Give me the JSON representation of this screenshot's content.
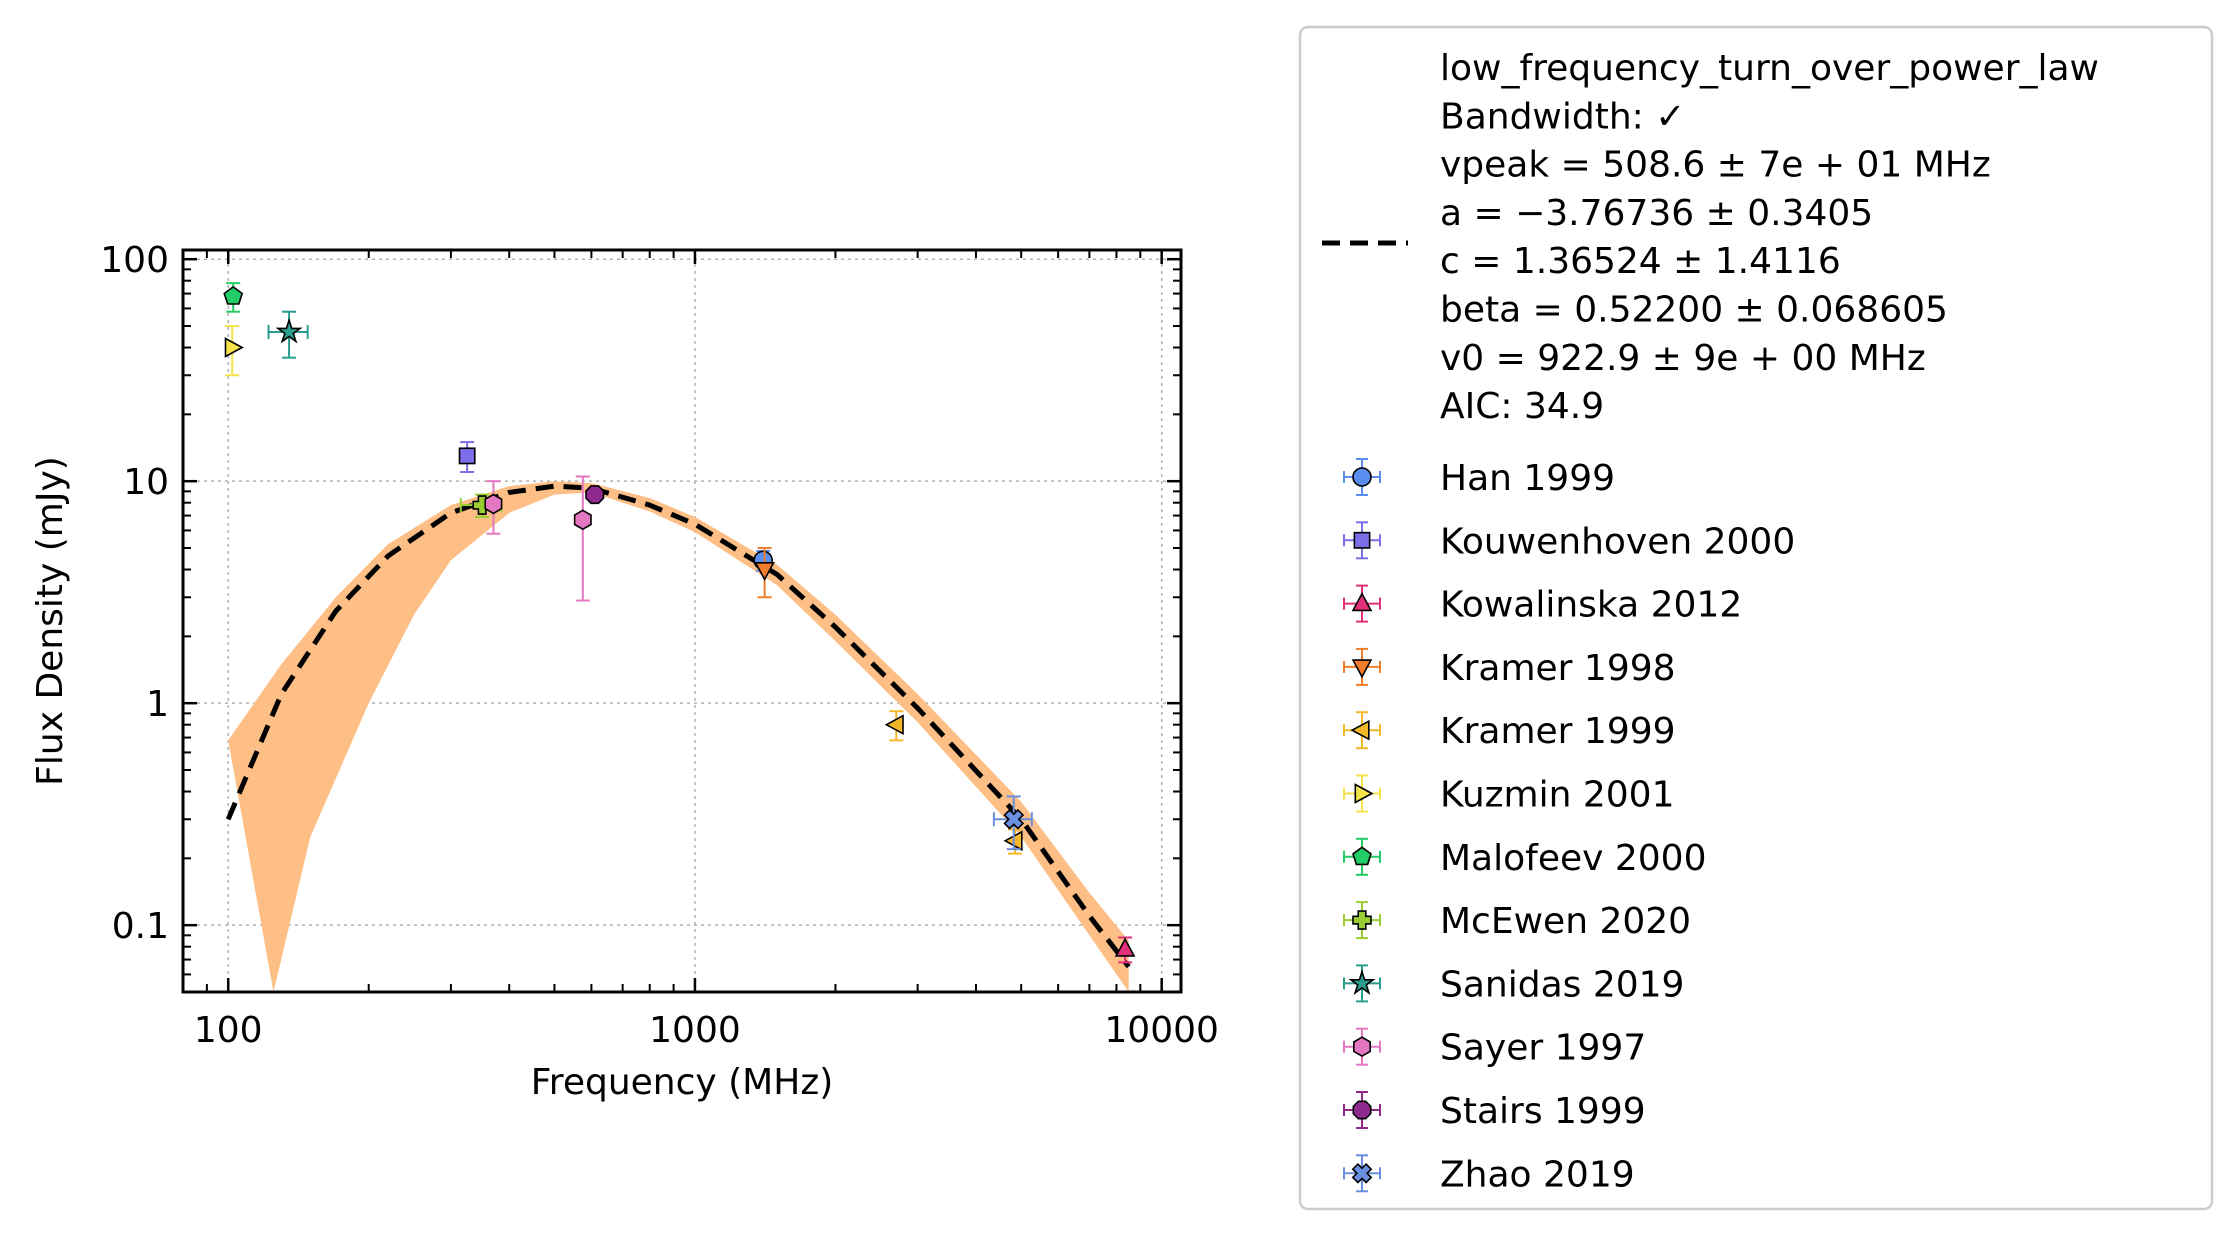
{
  "chart_data": {
    "type": "scatter",
    "xlabel": "Frequency (MHz)",
    "ylabel": "Flux Density (mJy)",
    "xscale": "log",
    "yscale": "log",
    "xlim": [
      80,
      11000
    ],
    "ylim": [
      0.05,
      110
    ],
    "grid": true,
    "legend_placement": "outside right",
    "x_ticks": [
      {
        "value": 100,
        "label": "100"
      },
      {
        "value": 1000,
        "label": "1000"
      },
      {
        "value": 10000,
        "label": "10000"
      }
    ],
    "y_ticks": [
      {
        "value": 0.1,
        "label": "0.1"
      },
      {
        "value": 1,
        "label": "1"
      },
      {
        "value": 10,
        "label": "10"
      },
      {
        "value": 100,
        "label": "100"
      }
    ],
    "fit": {
      "model": "low_frequency_turn_over_power_law",
      "legend_lines": [
        "low_frequency_turn_over_power_law",
        "Bandwidth: ✓",
        "vpeak = 508.6 ± 7e + 01 MHz",
        "a = −3.76736 ± 0.3405",
        "c = 1.36524 ± 1.4116",
        "beta = 0.52200 ± 0.068605",
        "v0 = 922.9 ± 9e + 00 MHz",
        "AIC: 34.9"
      ],
      "line_color": "#000000",
      "band_color": "#fdbf86",
      "curve": [
        [
          100,
          0.3
        ],
        [
          130,
          1.1
        ],
        [
          170,
          2.6
        ],
        [
          220,
          4.6
        ],
        [
          300,
          7.2
        ],
        [
          400,
          8.9
        ],
        [
          500,
          9.5
        ],
        [
          600,
          9.3
        ],
        [
          800,
          7.8
        ],
        [
          1000,
          6.4
        ],
        [
          1500,
          3.8
        ],
        [
          2000,
          2.2
        ],
        [
          3000,
          0.95
        ],
        [
          5000,
          0.3
        ],
        [
          7000,
          0.11
        ],
        [
          8500,
          0.065
        ]
      ],
      "band_upper": [
        [
          100,
          0.68
        ],
        [
          130,
          1.5
        ],
        [
          170,
          3.0
        ],
        [
          220,
          5.2
        ],
        [
          300,
          7.8
        ],
        [
          400,
          9.5
        ],
        [
          500,
          10.0
        ],
        [
          600,
          9.8
        ],
        [
          800,
          8.4
        ],
        [
          1000,
          6.9
        ],
        [
          1500,
          4.2
        ],
        [
          2000,
          2.5
        ],
        [
          3000,
          1.1
        ],
        [
          5000,
          0.36
        ],
        [
          7000,
          0.14
        ],
        [
          8500,
          0.085
        ]
      ],
      "band_lower": [
        [
          125,
          0.05
        ],
        [
          150,
          0.25
        ],
        [
          200,
          1.0
        ],
        [
          250,
          2.5
        ],
        [
          300,
          4.4
        ],
        [
          400,
          7.2
        ],
        [
          500,
          8.7
        ],
        [
          600,
          8.9
        ],
        [
          800,
          7.3
        ],
        [
          1000,
          5.9
        ],
        [
          1500,
          3.4
        ],
        [
          2000,
          1.9
        ],
        [
          3000,
          0.82
        ],
        [
          5000,
          0.25
        ],
        [
          7000,
          0.09
        ],
        [
          8500,
          0.05
        ]
      ]
    },
    "series": [
      {
        "name": "Han 1999",
        "marker": "circle",
        "color": "#5b8def",
        "points": [
          {
            "x": 1400,
            "y": 4.4,
            "yerr": [
              0.45,
              0.45
            ],
            "xerr": [
              0,
              0
            ]
          }
        ]
      },
      {
        "name": "Kouwenhoven 2000",
        "marker": "square",
        "color": "#7b6ee8",
        "points": [
          {
            "x": 325,
            "y": 13,
            "yerr": [
              2,
              2
            ],
            "xerr": [
              0,
              0
            ]
          }
        ]
      },
      {
        "name": "Kowalinska 2012",
        "marker": "triangle-up",
        "color": "#e0307a",
        "points": [
          {
            "x": 8350,
            "y": 0.078,
            "yerr": [
              0.01,
              0.01
            ],
            "xerr": [
              0,
              0
            ]
          }
        ]
      },
      {
        "name": "Kramer 1998",
        "marker": "triangle-down",
        "color": "#f07d2b",
        "points": [
          {
            "x": 1410,
            "y": 4.0,
            "yerr": [
              1.0,
              1.0
            ],
            "xerr": [
              0,
              0
            ]
          }
        ]
      },
      {
        "name": "Kramer 1999",
        "marker": "triangle-left",
        "color": "#f3b72a",
        "points": [
          {
            "x": 2700,
            "y": 0.8,
            "yerr": [
              0.12,
              0.12
            ],
            "xerr": [
              0,
              0
            ]
          },
          {
            "x": 4850,
            "y": 0.24,
            "yerr": [
              0.03,
              0.03
            ],
            "xerr": [
              0,
              0
            ]
          }
        ]
      },
      {
        "name": "Kuzmin 2001",
        "marker": "triangle-right",
        "color": "#f5e34a",
        "points": [
          {
            "x": 102,
            "y": 40,
            "yerr": [
              10,
              10
            ],
            "xerr": [
              0,
              0
            ]
          }
        ]
      },
      {
        "name": "Malofeev 2000",
        "marker": "pentagon",
        "color": "#22cc66",
        "points": [
          {
            "x": 102.5,
            "y": 68,
            "yerr": [
              10,
              10
            ],
            "xerr": [
              0,
              0
            ]
          }
        ]
      },
      {
        "name": "McEwen 2020",
        "marker": "plus",
        "color": "#9acd32",
        "points": [
          {
            "x": 350,
            "y": 7.8,
            "yerr": [
              0.9,
              0.9
            ],
            "xerr": [
              35,
              35
            ]
          }
        ]
      },
      {
        "name": "Sanidas 2019",
        "marker": "star",
        "color": "#2a9d8f",
        "points": [
          {
            "x": 135,
            "y": 47,
            "yerr": [
              11,
              11
            ],
            "xerr": [
              13,
              13
            ]
          }
        ]
      },
      {
        "name": "Sayer 1997",
        "marker": "hexagon",
        "color": "#e377c2",
        "points": [
          {
            "x": 370,
            "y": 7.9,
            "yerr": [
              2.1,
              2.1
            ],
            "xerr": [
              0,
              0
            ]
          },
          {
            "x": 575,
            "y": 6.7,
            "yerr": [
              3.8,
              3.8
            ],
            "xerr": [
              0,
              0
            ]
          }
        ]
      },
      {
        "name": "Stairs 1999",
        "marker": "octagon",
        "color": "#8e2a8e",
        "points": [
          {
            "x": 610,
            "y": 8.7,
            "yerr": [
              0.45,
              0.45
            ],
            "xerr": [
              0,
              0
            ]
          }
        ]
      },
      {
        "name": "Zhao 2019",
        "marker": "x-filled",
        "color": "#6b8fe0",
        "points": [
          {
            "x": 4820,
            "y": 0.3,
            "yerr": [
              0.08,
              0.08
            ],
            "xerr": [
              450,
              450
            ]
          }
        ]
      }
    ]
  }
}
